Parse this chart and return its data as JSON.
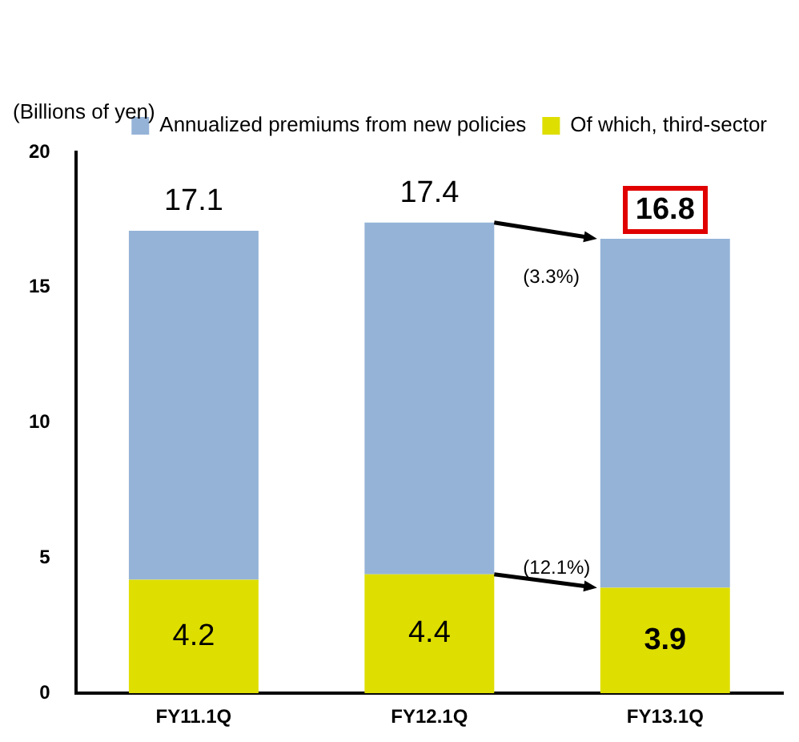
{
  "chart_data": {
    "type": "bar",
    "ylabel": "(Billions of yen)",
    "categories": [
      "FY11.1Q",
      "FY12.1Q",
      "FY13.1Q"
    ],
    "stacked": true,
    "series": [
      {
        "name": "Of which, third-sector",
        "color": "#dede00",
        "values": [
          4.2,
          4.4,
          3.9
        ],
        "value_labels": [
          "4.2",
          "4.4",
          "3.9"
        ]
      },
      {
        "name": "Annualized premiums from new policies",
        "color": "#95b3d7",
        "values": [
          12.9,
          13.0,
          12.9
        ]
      }
    ],
    "totals": [
      "17.1",
      "17.4",
      "16.8"
    ],
    "ylim": [
      0,
      20
    ],
    "yticks": [
      0,
      5,
      10,
      15,
      20
    ],
    "grid": false,
    "legend": "top right",
    "annotations": [
      "(3.3%)",
      "(12.1%)"
    ]
  }
}
